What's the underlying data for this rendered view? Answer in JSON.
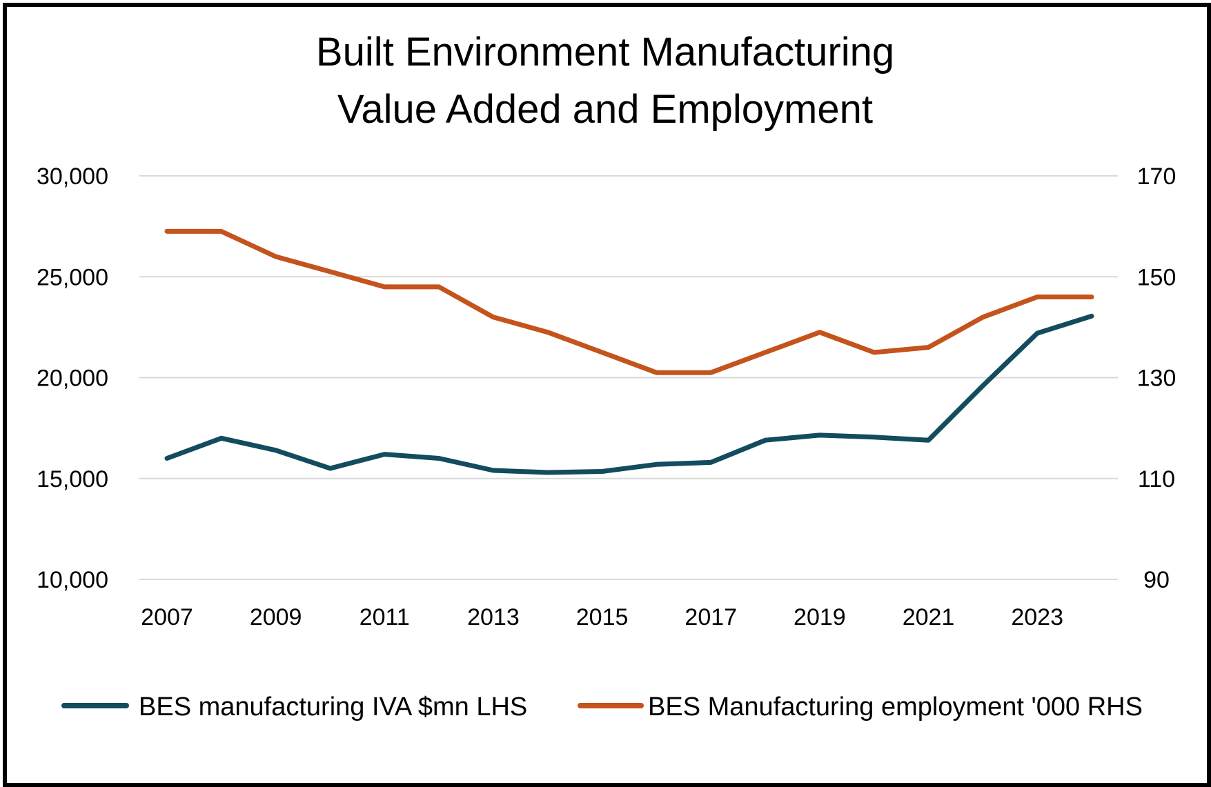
{
  "chart_data": {
    "type": "line",
    "title_lines": [
      "Built Environment Manufacturing",
      "Value Added and Employment"
    ],
    "x": [
      2007,
      2008,
      2009,
      2010,
      2011,
      2012,
      2013,
      2014,
      2015,
      2016,
      2017,
      2018,
      2019,
      2020,
      2021,
      2022,
      2023,
      2024
    ],
    "x_tick_labels": [
      "2007",
      "2009",
      "2011",
      "2013",
      "2015",
      "2017",
      "2019",
      "2021",
      "2023"
    ],
    "y_left": {
      "ylim": [
        10000,
        30000
      ],
      "ticks": [
        10000,
        15000,
        20000,
        25000,
        30000
      ],
      "tick_labels": [
        "10,000",
        "15,000",
        "20,000",
        "25,000",
        "30,000"
      ]
    },
    "y_right": {
      "ylim": [
        90,
        170
      ],
      "ticks": [
        90,
        110,
        130,
        150,
        170
      ],
      "tick_labels": [
        "90",
        "110",
        "130",
        "150",
        "170"
      ]
    },
    "grid": true,
    "legend_position": "bottom",
    "series": [
      {
        "name": "BES manufacturing IVA $mn LHS",
        "axis": "left",
        "color": "#134B5F",
        "values": [
          16000,
          17000,
          16400,
          15500,
          16200,
          16000,
          15400,
          15300,
          15350,
          15700,
          15800,
          16900,
          17150,
          17050,
          16900,
          19600,
          22200,
          23050
        ]
      },
      {
        "name": "BES Manufacturing employment '000 RHS",
        "axis": "right",
        "color": "#C4531C",
        "values": [
          159,
          159,
          154,
          151,
          148,
          148,
          142,
          139,
          135,
          131,
          131,
          135,
          139,
          135,
          136,
          142,
          146,
          146
        ]
      }
    ]
  }
}
